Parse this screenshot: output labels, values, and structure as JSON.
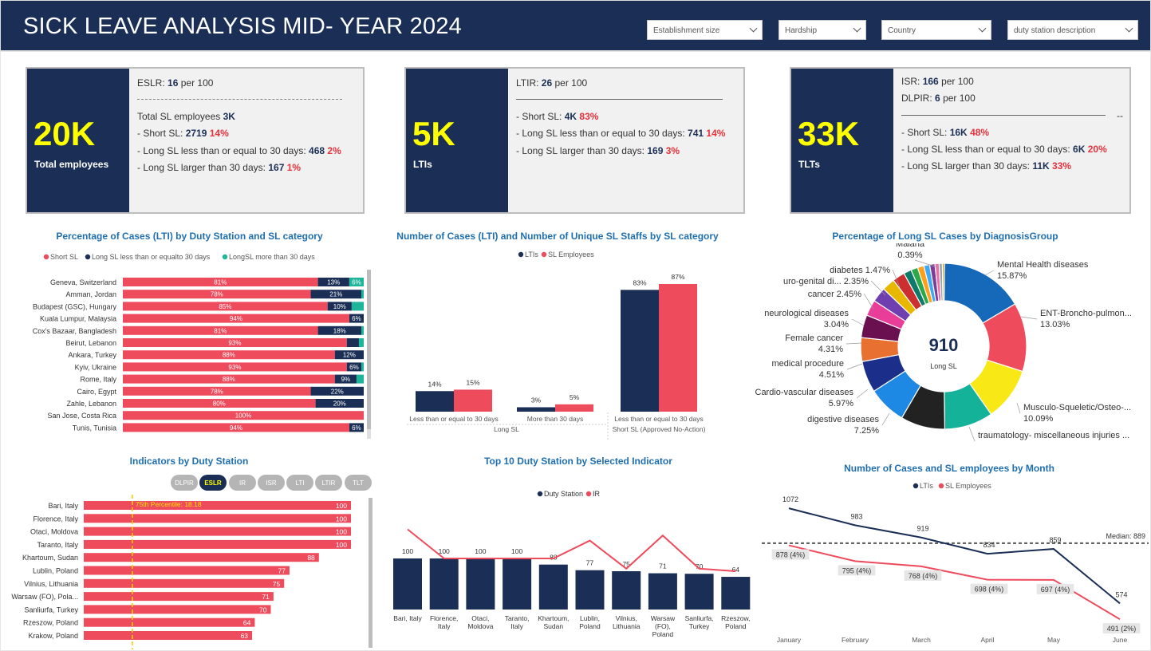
{
  "header": {
    "title": "SICK LEAVE ANALYSIS MID- YEAR 2024",
    "filters": [
      "Establishment size",
      "Hardship",
      "Country",
      "duty station description"
    ]
  },
  "cards": [
    {
      "big": "20K",
      "sub": "Total employees",
      "rate_label": "ESLR:",
      "rate_value": "16",
      "rate_unit": "per 100",
      "total_label": "Total SL employees",
      "total_value": "3K",
      "rows": [
        {
          "label": "- Short SL:",
          "value": "2719",
          "pct": "14%"
        },
        {
          "label": "- Long SL less than or equal to 30 days:",
          "value": "468",
          "pct": "2%"
        },
        {
          "label": "- Long SL larger than 30 days:",
          "value": "167",
          "pct": "1%"
        }
      ]
    },
    {
      "big": "5K",
      "sub": "LTIs",
      "rate_label": "LTIR:",
      "rate_value": "26",
      "rate_unit": "per 100",
      "rows": [
        {
          "label": "- Short SL:",
          "value": "4K",
          "pct": "83%"
        },
        {
          "label": "- Long SL less than or equal to 30 days:",
          "value": "741",
          "pct": "14%"
        },
        {
          "label": "- Long SL larger than 30 days:",
          "value": "169",
          "pct": "3%"
        }
      ]
    },
    {
      "big": "33K",
      "sub": "TLTs",
      "rate_label": "ISR:",
      "rate_value": "166",
      "rate_unit": "per 100",
      "rate2_label": "DLPIR:",
      "rate2_value": "6",
      "rate2_unit": "per 100",
      "dash_tail": "--",
      "rows": [
        {
          "label": "- Short SL:",
          "value": "16K",
          "pct": "48%"
        },
        {
          "label": "- Long SL less than or equal to 30 days:",
          "value": "6K",
          "pct": "20%"
        },
        {
          "label": "- Long SL larger than 30 days:",
          "value": "11K",
          "pct": "33%"
        }
      ]
    }
  ],
  "colors": {
    "navy": "#1b2f56",
    "red": "#ee4b5d",
    "teal": "#1fb59a",
    "yellow": "#ffff00",
    "median": "#555555"
  },
  "chart_data": [
    {
      "id": "lti_by_station",
      "type": "bar",
      "orientation": "horizontal-stacked-100",
      "title": "Percentage of Cases (LTI) by Duty Station and SL category",
      "legend": [
        "Short SL",
        "Long SL less than or equalto 30 days",
        "LongSL more than 30 days"
      ],
      "legend_placement": "top",
      "categories": [
        "Geneva, Switzerland",
        "Amman, Jordan",
        "Budapest (GSC), Hungary",
        "Kuala Lumpur, Malaysia",
        "Cox's Bazaar, Bangladesh",
        "Beirut, Lebanon",
        "Ankara, Turkey",
        "Kyiv, Ukraine",
        "Rome, Italy",
        "Cairo, Egypt",
        "Zahle, Lebanon",
        "San Jose, Costa Rica",
        "Tunis, Tunisia"
      ],
      "series": [
        {
          "name": "Short SL",
          "values": [
            81,
            78,
            85,
            94,
            81,
            93,
            88,
            93,
            88,
            78,
            80,
            100,
            94
          ],
          "labels": [
            "81%",
            "78%",
            "85%",
            "94%",
            "81%",
            "93%",
            "88%",
            "93%",
            "88%",
            "78%",
            "80%",
            "100%",
            "94%"
          ]
        },
        {
          "name": "Long SL less than or equalto 30 days",
          "values": [
            13,
            21,
            10,
            6,
            18,
            5,
            12,
            6,
            9,
            22,
            20,
            0,
            6
          ],
          "labels": [
            "13%",
            "21%",
            "10%",
            "6%",
            "18%",
            "",
            "12%",
            "6%",
            "9%",
            "22%",
            "20%",
            "",
            "6%"
          ]
        },
        {
          "name": "LongSL more than 30 days",
          "values": [
            6,
            1,
            5,
            0,
            1,
            2,
            0,
            1,
            3,
            0,
            0,
            0,
            0
          ],
          "labels": [
            "6%",
            "",
            "",
            "",
            "",
            "",
            "",
            "",
            "",
            "",
            "",
            "",
            ""
          ]
        }
      ]
    },
    {
      "id": "lti_vs_staff",
      "type": "bar",
      "title": "Number of Cases (LTI) and Number of Unique SL Staffs by SL category",
      "legend": [
        "LTIs",
        "SL Employees"
      ],
      "legend_placement": "top",
      "categories": [
        "Less than or equal to 30 days",
        "More than 30 days",
        "Less than or equal to 30 days"
      ],
      "groups": [
        {
          "label": "Long SL",
          "span": [
            0,
            1
          ]
        },
        {
          "label": "Short SL (Approved No-Action)",
          "span": [
            2,
            2
          ]
        }
      ],
      "series": [
        {
          "name": "LTIs",
          "values": [
            14,
            3,
            83
          ],
          "labels": [
            "14%",
            "3%",
            "83%"
          ]
        },
        {
          "name": "SL Employees",
          "values": [
            15,
            5,
            87
          ],
          "labels": [
            "15%",
            "5%",
            "87%"
          ]
        }
      ]
    },
    {
      "id": "diagnosis_donut",
      "type": "pie",
      "title": "Percentage of Long SL Cases by DiagnosisGroup",
      "center_value": "910",
      "center_label": "Long SL",
      "slices": [
        {
          "label": "Mental Health diseases",
          "value": 15.87,
          "pct": "15.87%",
          "color": "#1569b8"
        },
        {
          "label": "ENT-Broncho-pulmon...",
          "value": 13.03,
          "pct": "13.03%",
          "color": "#ee4b5d"
        },
        {
          "label": "Musculo-Squeletic/Osteo-...",
          "value": 10.09,
          "pct": "10.09%",
          "color": "#f7e816"
        },
        {
          "label": "traumatology- miscellaneous injuries ...",
          "value": 9.21,
          "pct": "9.21%",
          "color": "#15b29a"
        },
        {
          "label": "",
          "value": 8.4,
          "pct": "",
          "color": "#222222"
        },
        {
          "label": "digestive diseases",
          "value": 7.25,
          "pct": "7.25%",
          "color": "#1e88e5"
        },
        {
          "label": "Cardio-vascular diseases",
          "value": 5.97,
          "pct": "5.97%",
          "color": "#1b2f8a"
        },
        {
          "label": "medical procedure",
          "value": 4.51,
          "pct": "4.51%",
          "color": "#e87030"
        },
        {
          "label": "Female cancer",
          "value": 4.31,
          "pct": "4.31%",
          "color": "#6a0f50"
        },
        {
          "label": "neurological diseases",
          "value": 3.04,
          "pct": "3.04%",
          "color": "#e83e9a"
        },
        {
          "label": "",
          "value": 2.8,
          "pct": "",
          "color": "#6f3fb0"
        },
        {
          "label": "cancer",
          "value": 2.45,
          "pct": "2.45%",
          "color": "#e8b800"
        },
        {
          "label": "uro-genital di...",
          "value": 2.35,
          "pct": "2.35%",
          "color": "#cc2f2f"
        },
        {
          "label": "diabetes",
          "value": 1.47,
          "pct": "1.47%",
          "color": "#0e7a6a"
        },
        {
          "label": "",
          "value": 1.3,
          "pct": "",
          "color": "#2ba84a"
        },
        {
          "label": "",
          "value": 1.2,
          "pct": "",
          "color": "#ff9f1c"
        },
        {
          "label": "",
          "value": 1.1,
          "pct": "",
          "color": "#3fa9f5"
        },
        {
          "label": "",
          "value": 1.0,
          "pct": "",
          "color": "#7d3c98"
        },
        {
          "label": "",
          "value": 0.8,
          "pct": "",
          "color": "#f06eaa"
        },
        {
          "label": "",
          "value": 0.6,
          "pct": "",
          "color": "#95a5a6"
        },
        {
          "label": "Malaria",
          "value": 0.39,
          "pct": "0.39%",
          "color": "#c9a227"
        }
      ]
    },
    {
      "id": "indicators_by_station",
      "type": "bar",
      "orientation": "horizontal",
      "title": "Indicators by Duty Station",
      "pills": [
        "DLPIR",
        "ESLR",
        "IR",
        "ISR",
        "LTI",
        "LTIR",
        "TLT"
      ],
      "active_pill": "ESLR",
      "reference_line": {
        "label": "75th Percentile: 18.18",
        "value": 18.18
      },
      "xlim": [
        0,
        100
      ],
      "categories": [
        "Bari, Italy",
        "Florence, Italy",
        "Otaci, Moldova",
        "Taranto, Italy",
        "Khartoum, Sudan",
        "Lublin, Poland",
        "Vilnius, Lithuania",
        "Warsaw (FO), Pola...",
        "Sanliurfa, Turkey",
        "Rzeszow, Poland",
        "Krakow, Poland"
      ],
      "values": [
        100,
        100,
        100,
        100,
        88,
        77,
        75,
        71,
        70,
        64,
        63
      ]
    },
    {
      "id": "top10",
      "type": "bar",
      "title": "Top 10 Duty Station by Selected Indicator",
      "legend": [
        "Duty Station",
        "IR"
      ],
      "legend_placement": "top",
      "categories": [
        "Bari, Italy",
        "Florence, Italy",
        "Otaci, Moldova",
        "Taranto, Italy",
        "Khartoum, Sudan",
        "Lublin, Poland",
        "Vilnius, Lithuania",
        "Warsaw (FO), Poland",
        "Sanliurfa, Turkey",
        "Rzeszow, Poland"
      ],
      "series": [
        {
          "name": "Duty Station",
          "values": [
            100,
            100,
            100,
            100,
            88,
            77,
            75,
            71,
            70,
            64
          ]
        },
        {
          "name": "IR",
          "values": [
            157,
            100,
            100,
            100,
            100,
            135,
            80,
            145,
            80,
            75
          ]
        }
      ],
      "ylim": [
        0,
        170
      ]
    },
    {
      "id": "by_month",
      "type": "line",
      "title": "Number of Cases and SL employees by Month",
      "legend": [
        "LTIs",
        "SL Employees"
      ],
      "legend_placement": "top",
      "categories": [
        "January",
        "February",
        "March",
        "April",
        "May",
        "June"
      ],
      "series": [
        {
          "name": "LTIs",
          "values": [
            1072,
            983,
            919,
            834,
            859,
            574
          ],
          "labels": [
            "1072",
            "983",
            "919",
            "834",
            "859",
            "574"
          ]
        },
        {
          "name": "SL Employees",
          "values": [
            878,
            795,
            768,
            698,
            697,
            491
          ],
          "labels": [
            "878 (4%)",
            "795 (4%)",
            "768 (4%)",
            "698 (4%)",
            "697 (4%)",
            "491 (2%)"
          ]
        }
      ],
      "reference_line": {
        "label": "Median: 889",
        "value": 889
      },
      "ylim": [
        450,
        1110
      ]
    }
  ]
}
